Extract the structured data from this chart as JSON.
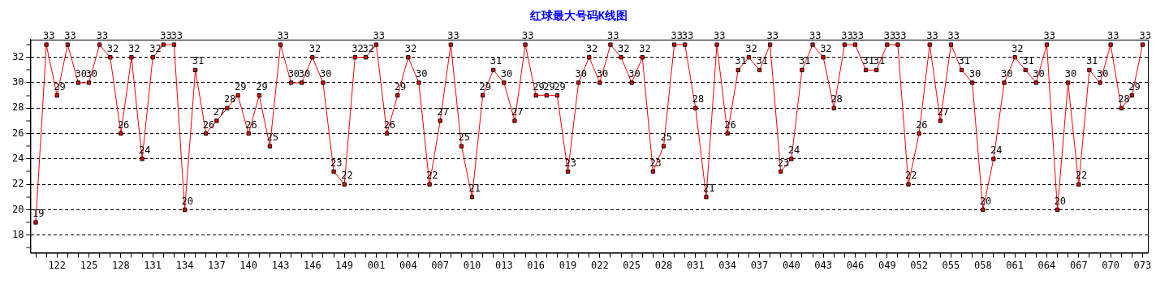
{
  "chart_data": {
    "type": "line",
    "title": "红球最大号码K线图",
    "categories": [
      null,
      null,
      "122",
      null,
      null,
      "125",
      null,
      null,
      "128",
      null,
      null,
      "131",
      null,
      null,
      "134",
      null,
      null,
      "137",
      null,
      null,
      "140",
      null,
      null,
      "143",
      null,
      null,
      "146",
      null,
      null,
      "149",
      null,
      null,
      "001",
      null,
      null,
      "004",
      null,
      null,
      "007",
      null,
      null,
      "010",
      null,
      null,
      "013",
      null,
      null,
      "016",
      null,
      null,
      "019",
      null,
      null,
      "022",
      null,
      null,
      "025",
      null,
      null,
      "028",
      null,
      null,
      "031",
      null,
      null,
      "034",
      null,
      null,
      "037",
      null,
      null,
      "040",
      null,
      null,
      "043",
      null,
      null,
      "046",
      null,
      null,
      "049",
      null,
      null,
      "052",
      null,
      null,
      "055",
      null,
      null,
      "058",
      null,
      null,
      "061",
      null,
      null,
      "064",
      null,
      null,
      "067",
      null,
      null,
      "070",
      null,
      null,
      "073"
    ],
    "series": [
      {
        "color": "#ff0000",
        "values": [
          19,
          33,
          29,
          33,
          30,
          30,
          33,
          32,
          26,
          32,
          24,
          32,
          33,
          33,
          20,
          31,
          26,
          27,
          28,
          29,
          26,
          29,
          25,
          33,
          30,
          30,
          32,
          30,
          23,
          22,
          32,
          32,
          33,
          26,
          29,
          32,
          30,
          22,
          27,
          33,
          25,
          21,
          29,
          31,
          30,
          27,
          33,
          29,
          29,
          29,
          23,
          30,
          32,
          30,
          33,
          32,
          30,
          32,
          23,
          25,
          33,
          33,
          28,
          21,
          33,
          26,
          31,
          32,
          31,
          33,
          23,
          24,
          31,
          33,
          32,
          28,
          33,
          33,
          31,
          31,
          33,
          33,
          22,
          26,
          33,
          27,
          33,
          31,
          30,
          20,
          24,
          30,
          32,
          31,
          30,
          33,
          20,
          30,
          22,
          31,
          30,
          33,
          28,
          29,
          33
        ]
      }
    ],
    "ylim": [
      16.6,
      33.4
    ],
    "yticks": [
      {
        "value": 17,
        "label": null
      },
      18,
      {
        "value": 19,
        "label": null
      },
      20,
      {
        "value": 21,
        "label": null
      },
      22,
      {
        "value": 23,
        "label": null
      },
      24,
      {
        "value": 25,
        "label": null
      },
      26,
      {
        "value": 27,
        "label": null
      },
      28,
      {
        "value": 29,
        "label": null
      },
      30,
      {
        "value": 31,
        "label": null
      },
      32,
      {
        "value": 33,
        "label": null
      }
    ],
    "grid": "y",
    "marker": "square",
    "data_labels": true,
    "legend": false
  }
}
